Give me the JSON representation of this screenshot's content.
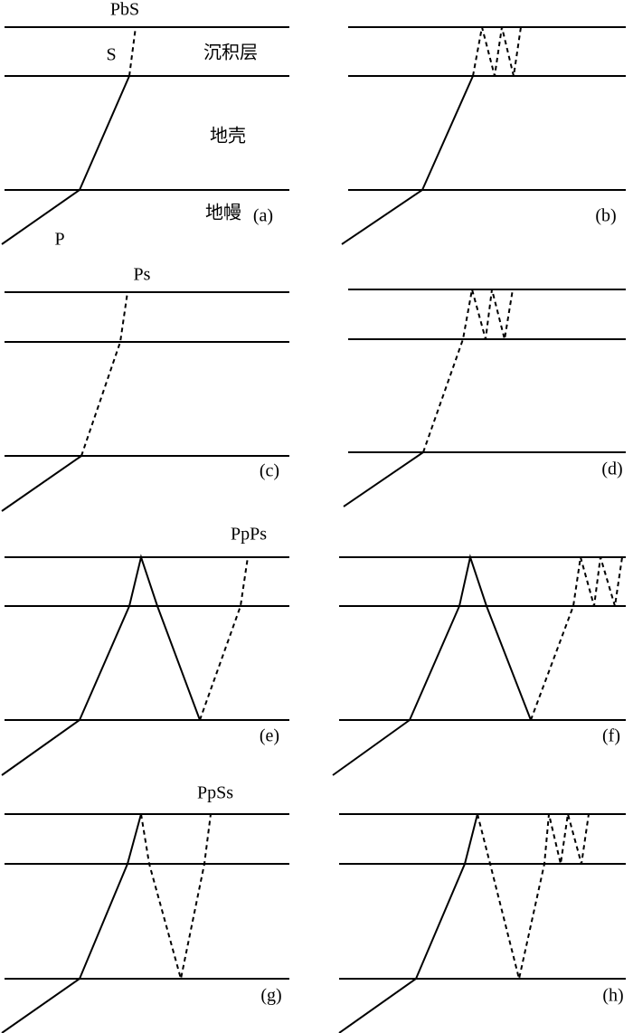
{
  "layers": {
    "sediment": "沉积层",
    "crust": "地壳",
    "mantle": "地幔"
  },
  "panels": [
    {
      "label": "(a)",
      "phase": "PbS",
      "s_label": "S",
      "p_label": "P"
    },
    {
      "label": "(b)"
    },
    {
      "label": "(c)",
      "phase": "Ps"
    },
    {
      "label": "(d)"
    },
    {
      "label": "(e)",
      "phase": "PpPs"
    },
    {
      "label": "(f)"
    },
    {
      "label": "(g)",
      "phase": "PpSs"
    },
    {
      "label": "(h)"
    }
  ]
}
